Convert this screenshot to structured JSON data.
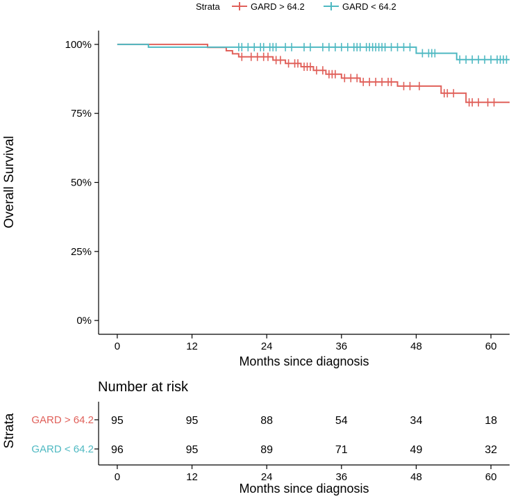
{
  "colors": {
    "high": "#e0605a",
    "low": "#4fb9c2",
    "axis": "#000000",
    "text": "#111111"
  },
  "chart_data": {
    "type": "line",
    "subtype": "kaplan-meier",
    "xlabel": "Months since diagnosis",
    "ylabel": "Overall Survival",
    "xlim": [
      -3,
      63
    ],
    "ylim": [
      -0.05,
      1.05
    ],
    "xticks": [
      0,
      12,
      24,
      36,
      48,
      60
    ],
    "yticks": [
      0,
      0.25,
      0.5,
      0.75,
      1.0
    ],
    "ytick_labels": [
      "0%",
      "25%",
      "50%",
      "75%",
      "100%"
    ],
    "legend": {
      "title": "Strata",
      "position": "top",
      "entries": [
        "GARD > 64.2",
        "GARD < 64.2"
      ]
    },
    "series": [
      {
        "name": "GARD > 64.2",
        "color": "#e0605a",
        "steps": [
          [
            0,
            1.0
          ],
          [
            14.5,
            0.989
          ],
          [
            17.5,
            0.977
          ],
          [
            18.5,
            0.966
          ],
          [
            19.5,
            0.955
          ],
          [
            25,
            0.943
          ],
          [
            27,
            0.931
          ],
          [
            29.5,
            0.919
          ],
          [
            31.5,
            0.906
          ],
          [
            33.5,
            0.892
          ],
          [
            36,
            0.878
          ],
          [
            39,
            0.864
          ],
          [
            45,
            0.849
          ],
          [
            52,
            0.823
          ],
          [
            56,
            0.79
          ],
          [
            63,
            0.79
          ]
        ],
        "censor": [
          20,
          21.5,
          22.5,
          23.5,
          24.2,
          25.5,
          26.2,
          27.5,
          28.5,
          29,
          30,
          30.5,
          31,
          32,
          33,
          34,
          34.5,
          35,
          36.5,
          37.5,
          38.5,
          39.5,
          40.5,
          41.5,
          42.5,
          43.5,
          44,
          46,
          47,
          48.5,
          52.5,
          53,
          54,
          56.5,
          57,
          58,
          59.5,
          60.5
        ]
      },
      {
        "name": "GARD < 64.2",
        "color": "#4fb9c2",
        "steps": [
          [
            0,
            1.0
          ],
          [
            5,
            0.99
          ],
          [
            48,
            0.968
          ],
          [
            54.5,
            0.945
          ],
          [
            63,
            0.945
          ]
        ],
        "censor": [
          19.5,
          20,
          21,
          22,
          23,
          23.5,
          24.5,
          25,
          25.5,
          27,
          28,
          30,
          31,
          33,
          34,
          35,
          36,
          37,
          38,
          38.5,
          39,
          40,
          40.5,
          41,
          41.5,
          42,
          42.5,
          43,
          44,
          45,
          46,
          47,
          49,
          50,
          50.5,
          51,
          55,
          56,
          57,
          58,
          59,
          60,
          61,
          61.5,
          62,
          62.5
        ]
      }
    ],
    "risk_table": {
      "title": "Number at risk",
      "row_axis_label": "Strata",
      "xlabel": "Months since diagnosis",
      "times": [
        0,
        12,
        24,
        36,
        48,
        60
      ],
      "rows": [
        {
          "name": "GARD > 64.2",
          "values": [
            95,
            95,
            88,
            54,
            34,
            18
          ]
        },
        {
          "name": "GARD < 64.2",
          "values": [
            96,
            95,
            89,
            71,
            49,
            32
          ]
        }
      ]
    }
  }
}
